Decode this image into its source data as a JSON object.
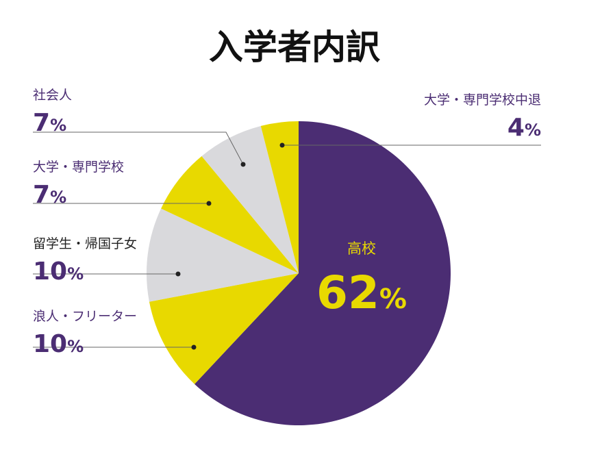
{
  "chart_data": {
    "type": "pie",
    "title": "入学者内訳",
    "unit": "%",
    "slices": [
      {
        "label": "高校",
        "value": 62,
        "display": "62",
        "color": "#4b2d73"
      },
      {
        "label": "浪人・フリーター",
        "value": 10,
        "display": "10",
        "color": "#e8d900"
      },
      {
        "label": "留学生・帰国子女",
        "value": 10,
        "display": "10",
        "color": "#d9d9dc"
      },
      {
        "label": "大学・専門学校",
        "value": 7,
        "display": "7",
        "color": "#e8d900"
      },
      {
        "label": "社会人",
        "value": 7,
        "display": "7",
        "color": "#d9d9dc"
      },
      {
        "label": "大学・専門学校中退",
        "value": 4,
        "display": "4",
        "color": "#e8d900"
      }
    ]
  }
}
